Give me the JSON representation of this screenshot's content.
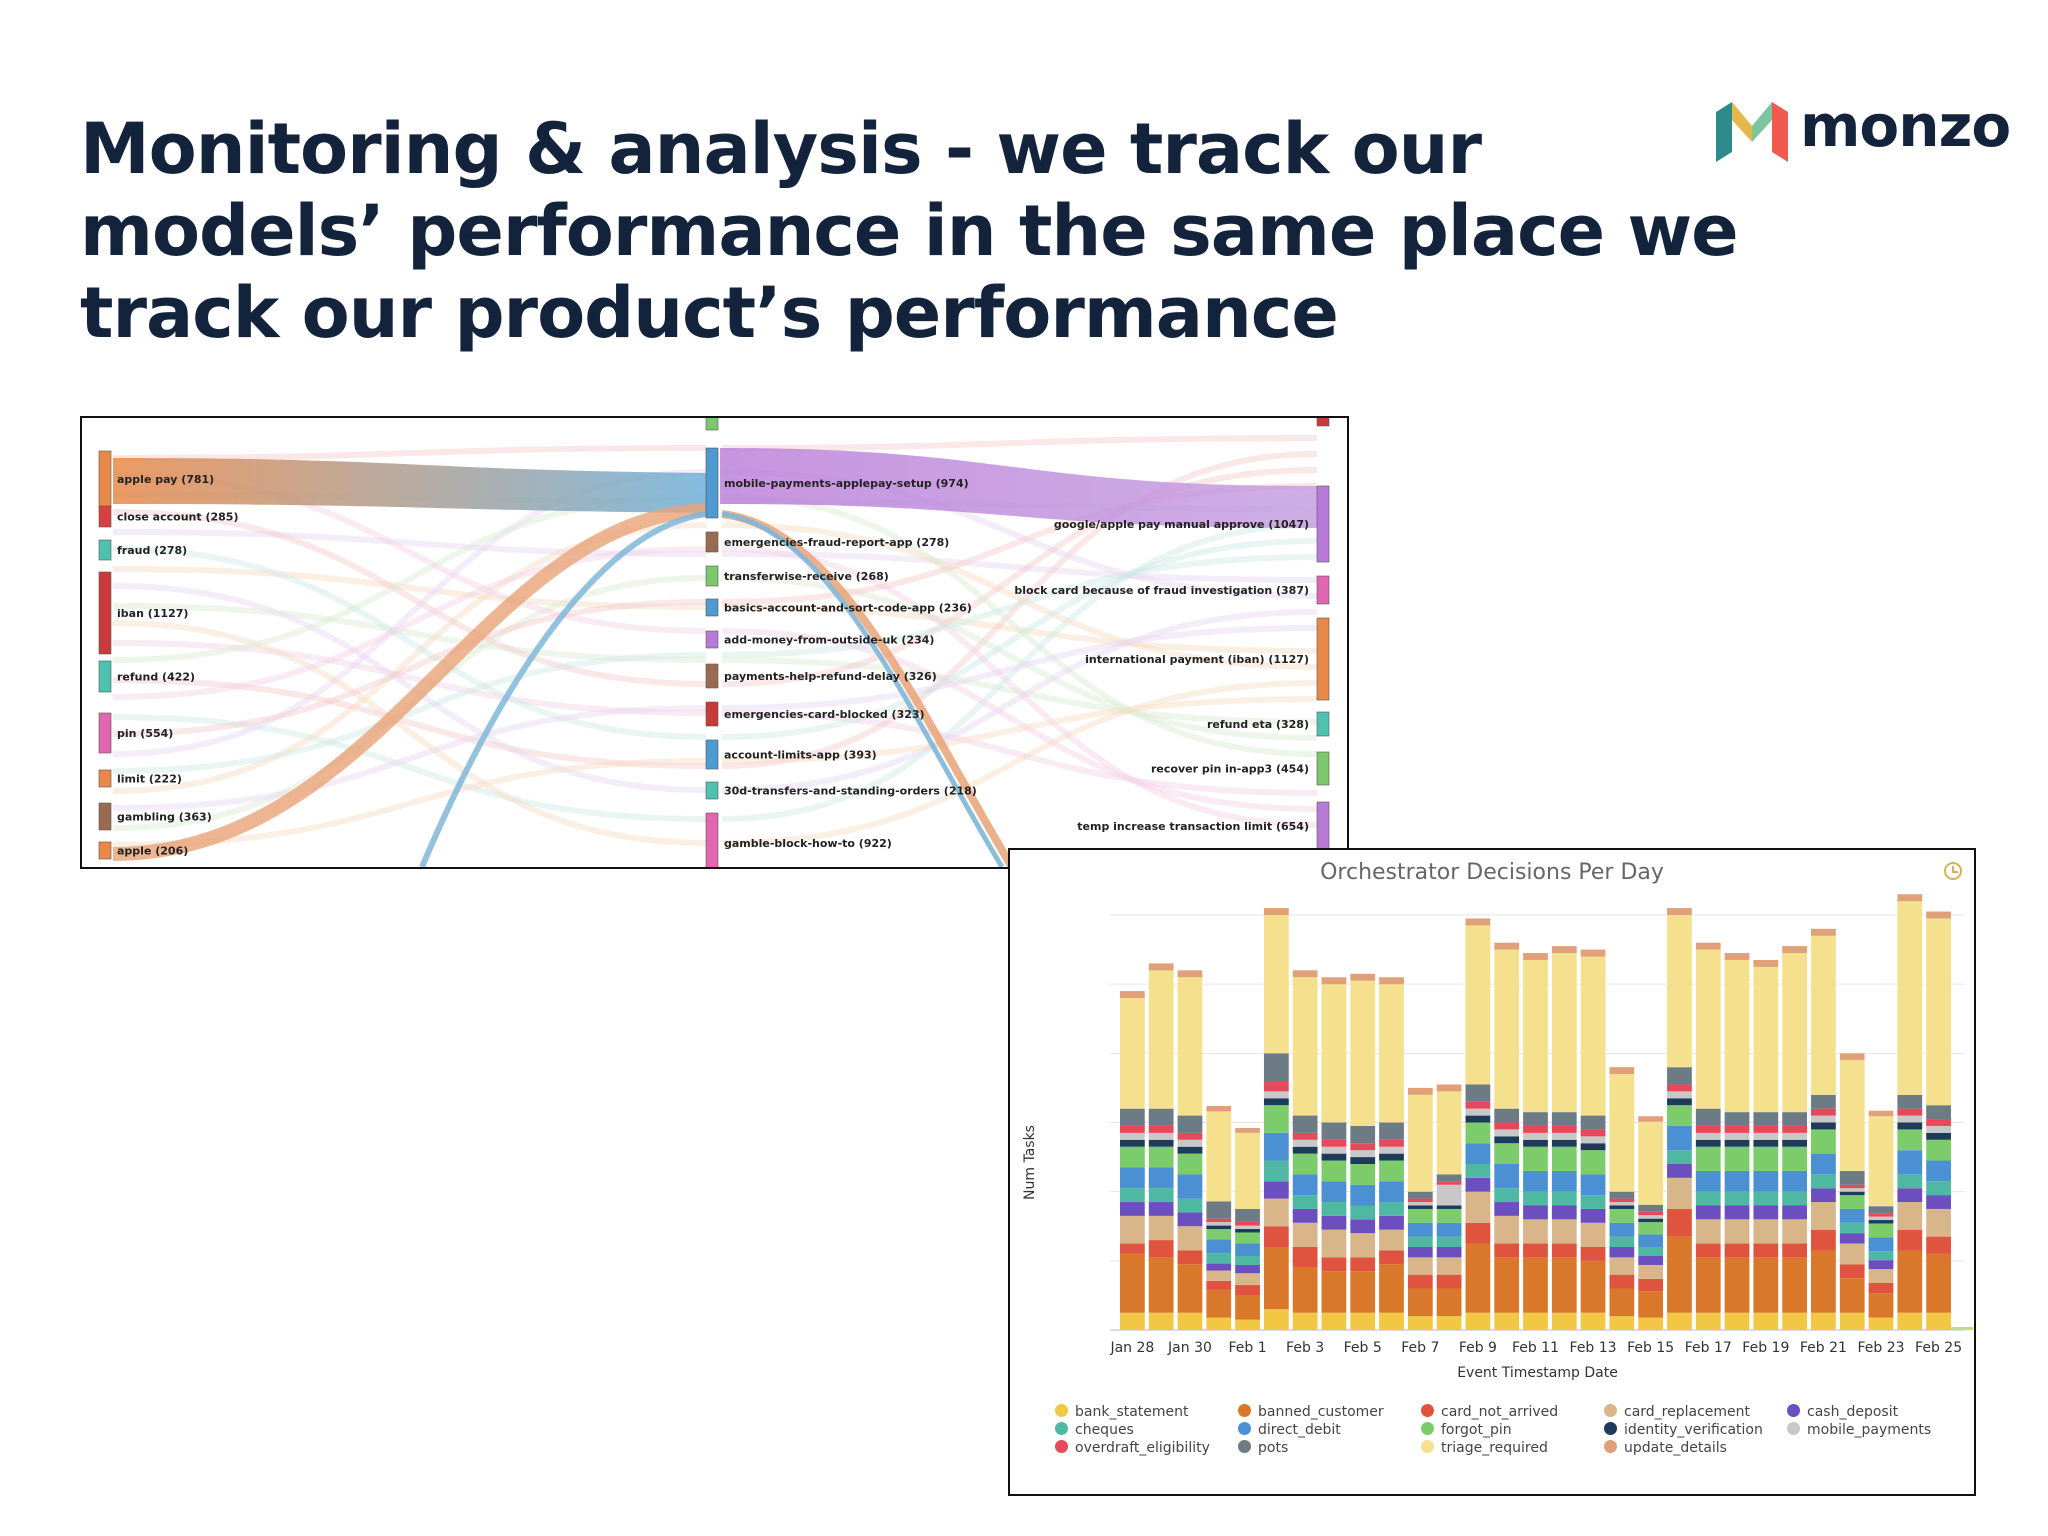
{
  "slide": {
    "title_lines": [
      "Monitoring & analysis - we track our",
      "models’ performance in the same place we",
      "track our product’s performance"
    ],
    "brand": "monzo",
    "colors": {
      "title": "#14233c",
      "logo_coral": "#f15a4e",
      "logo_teal": "#2e8b8b",
      "logo_gold": "#e6b74a",
      "logo_navy": "#14233c"
    }
  },
  "chart_data": [
    {
      "type": "sankey",
      "nodes_left": [
        {
          "label": "apple pay (781)",
          "color": "#e8894a"
        },
        {
          "label": "close account (285)",
          "color": "#d64040"
        },
        {
          "label": "fraud (278)",
          "color": "#4fc1b0"
        },
        {
          "label": "iban (1127)",
          "color": "#c93a3a"
        },
        {
          "label": "refund (422)",
          "color": "#4fc1b0"
        },
        {
          "label": "pin (554)",
          "color": "#e066b0"
        },
        {
          "label": "limit (222)",
          "color": "#e8894a"
        },
        {
          "label": "gambling (363)",
          "color": "#9a6a52"
        },
        {
          "label": "apple (206)",
          "color": "#e8894a"
        }
      ],
      "nodes_middle": [
        {
          "label": "",
          "color": "#7cc86a"
        },
        {
          "label": "mobile-payments-applepay-setup (974)",
          "color": "#4f9ad0"
        },
        {
          "label": "emergencies-fraud-report-app (278)",
          "color": "#9a6a52"
        },
        {
          "label": "transferwise-receive (268)",
          "color": "#7cc86a"
        },
        {
          "label": "basics-account-and-sort-code-app (236)",
          "color": "#4f9ad0"
        },
        {
          "label": "add-money-from-outside-uk (234)",
          "color": "#b87ad8"
        },
        {
          "label": "payments-help-refund-delay (326)",
          "color": "#9a6a52"
        },
        {
          "label": "emergencies-card-blocked (323)",
          "color": "#c93a3a"
        },
        {
          "label": "account-limits-app (393)",
          "color": "#4f9ad0"
        },
        {
          "label": "30d-transfers-and-standing-orders (218)",
          "color": "#4fc1b0"
        },
        {
          "label": "gamble-block-how-to (922)",
          "color": "#e066b0"
        }
      ],
      "nodes_right": [
        {
          "label": "",
          "color": "#c93a3a"
        },
        {
          "label": "google/apple pay manual approve (1047)",
          "color": "#b87ad8"
        },
        {
          "label": "block card because of fraud investigation (387)",
          "color": "#e066b0"
        },
        {
          "label": "international payment (iban) (1127)",
          "color": "#e8894a"
        },
        {
          "label": "refund eta (328)",
          "color": "#4fc1b0"
        },
        {
          "label": "recover pin in-app3 (454)",
          "color": "#7cc86a"
        },
        {
          "label": "temp increase transaction limit (654)",
          "color": "#b87ad8"
        }
      ]
    },
    {
      "type": "bar",
      "stacked": true,
      "title": "Orchestrator Decisions Per Day",
      "xlabel": "Event Timestamp Date",
      "ylabel": "Num Tasks",
      "grid": true,
      "legend_position": "bottom",
      "x_tick_labels": [
        "Jan 28",
        "Jan 30",
        "Feb 1",
        "Feb 3",
        "Feb 5",
        "Feb 7",
        "Feb 9",
        "Feb 11",
        "Feb 13",
        "Feb 15",
        "Feb 17",
        "Feb 19",
        "Feb 21",
        "Feb 23",
        "Feb 25"
      ],
      "ylim": [
        0,
        60
      ],
      "categories": [
        "Jan 28",
        "Jan 29",
        "Jan 30",
        "Jan 31",
        "Feb 1",
        "Feb 2",
        "Feb 3",
        "Feb 4",
        "Feb 5",
        "Feb 6",
        "Feb 7",
        "Feb 8",
        "Feb 9",
        "Feb 10",
        "Feb 11",
        "Feb 12",
        "Feb 13",
        "Feb 14",
        "Feb 15",
        "Feb 16",
        "Feb 17",
        "Feb 18",
        "Feb 19",
        "Feb 20",
        "Feb 21",
        "Feb 22",
        "Feb 23",
        "Feb 24",
        "Feb 25"
      ],
      "series": [
        {
          "name": "bank_statement",
          "color": "#f2c744"
        },
        {
          "name": "banned_customer",
          "color": "#d9782a"
        },
        {
          "name": "card_not_arrived",
          "color": "#e0533e"
        },
        {
          "name": "card_replacement",
          "color": "#d9b68a"
        },
        {
          "name": "cash_deposit",
          "color": "#6b4fbf"
        },
        {
          "name": "cheques",
          "color": "#4fb8a3"
        },
        {
          "name": "direct_debit",
          "color": "#4a90d2"
        },
        {
          "name": "forgot_pin",
          "color": "#7ccc6b"
        },
        {
          "name": "identity_verification",
          "color": "#1d3c5a"
        },
        {
          "name": "mobile_payments",
          "color": "#c8c8c8"
        },
        {
          "name": "overdraft_eligibility",
          "color": "#e8495a"
        },
        {
          "name": "pots",
          "color": "#6d7b85"
        },
        {
          "name": "triage_required",
          "color": "#f5e08e"
        },
        {
          "name": "update_details",
          "color": "#e0a078"
        }
      ],
      "matrix": [
        [
          2.5,
          8.5,
          1.5,
          4,
          2,
          2,
          3,
          3,
          1,
          1,
          1,
          2.5,
          16,
          1
        ],
        [
          2.5,
          8,
          2.5,
          3.5,
          2,
          2,
          3,
          3,
          1,
          1,
          1,
          2.5,
          20,
          1
        ],
        [
          2.5,
          7,
          2,
          3.5,
          2,
          2,
          3.5,
          3,
          1,
          1,
          1,
          2.5,
          20,
          1
        ],
        [
          1.8,
          4,
          1.3,
          1.5,
          1,
          1.5,
          2,
          1.5,
          0.5,
          0.5,
          0.5,
          2.5,
          13,
          0.8
        ],
        [
          1.5,
          3.5,
          1.5,
          1.7,
          1.2,
          1.3,
          1.8,
          1.6,
          0.5,
          0.5,
          0.6,
          1.8,
          11,
          0.7
        ],
        [
          3,
          9,
          3,
          4,
          2.5,
          3,
          4,
          4,
          1,
          1,
          1.5,
          4,
          20,
          1
        ],
        [
          2.5,
          6.5,
          3,
          3.5,
          2,
          2,
          3,
          3,
          1,
          1,
          1,
          2.5,
          20,
          1
        ],
        [
          2.5,
          6,
          2,
          4,
          2,
          2,
          3,
          3,
          1,
          1,
          1,
          2.5,
          20,
          1
        ],
        [
          2.5,
          6,
          2,
          3.5,
          2,
          2,
          3,
          3,
          1,
          1,
          1,
          2.5,
          21,
          1
        ],
        [
          2.5,
          7,
          2,
          3,
          2,
          2,
          3,
          3,
          1,
          1,
          1,
          2.5,
          20,
          1
        ],
        [
          2,
          4,
          2,
          2.5,
          1.5,
          1.5,
          2,
          2,
          0.5,
          0.5,
          0.5,
          1,
          14,
          1
        ],
        [
          2,
          4,
          2,
          2.5,
          1.5,
          1.5,
          2,
          2,
          0.5,
          3,
          0.5,
          1,
          12,
          1
        ],
        [
          2.5,
          10,
          3,
          4.5,
          2,
          2,
          3,
          3,
          1,
          1,
          1,
          2.5,
          23,
          1
        ],
        [
          2.5,
          8,
          2,
          4,
          2,
          2,
          3.5,
          3,
          1,
          1,
          1,
          2,
          23,
          1
        ],
        [
          2.5,
          8,
          2,
          3.5,
          2,
          2,
          3,
          3.5,
          1,
          1,
          1,
          2,
          22,
          1
        ],
        [
          2.5,
          8,
          2,
          3.5,
          2,
          2,
          3,
          3.5,
          1,
          1,
          1,
          2,
          23,
          1
        ],
        [
          2.5,
          7.5,
          2,
          3.5,
          2,
          2,
          3,
          3.5,
          1,
          1,
          1,
          2,
          23,
          1
        ],
        [
          2,
          4,
          2,
          2.5,
          1.5,
          1.5,
          2,
          2,
          0.5,
          0.5,
          0.5,
          1,
          17,
          1
        ],
        [
          1.8,
          3.8,
          1.8,
          2,
          1.3,
          1.3,
          1.8,
          1.8,
          0.5,
          0.5,
          0.5,
          1,
          12,
          0.8
        ],
        [
          2.5,
          11,
          4,
          4.5,
          2,
          2,
          3.5,
          3,
          1,
          1,
          1,
          2.5,
          22,
          1
        ],
        [
          2.5,
          8,
          2,
          3.5,
          2,
          2,
          3,
          3.5,
          1,
          1,
          1,
          2.5,
          23,
          1
        ],
        [
          2.5,
          8,
          2,
          3.5,
          2,
          2,
          3,
          3.5,
          1,
          1,
          1,
          2,
          22,
          1
        ],
        [
          2.5,
          8,
          2,
          3.5,
          2,
          2,
          3,
          3.5,
          1,
          1,
          1,
          2,
          21,
          1
        ],
        [
          2.5,
          8,
          2,
          3.5,
          2,
          2,
          3,
          3.5,
          1,
          1,
          1,
          2,
          23,
          1
        ],
        [
          2.5,
          9,
          3,
          4,
          2,
          2,
          3,
          3.5,
          1,
          1,
          1,
          2,
          23,
          1
        ],
        [
          2.5,
          5,
          2,
          3,
          1.5,
          1.5,
          2,
          2,
          0.5,
          0.5,
          0.5,
          2,
          16,
          1
        ],
        [
          1.8,
          3.5,
          1.5,
          2,
          1.3,
          1.3,
          2,
          2,
          0.5,
          0.5,
          0.5,
          1,
          13,
          0.8
        ],
        [
          2.5,
          9,
          3,
          4,
          2,
          2,
          3.5,
          3,
          1,
          1,
          1,
          2,
          28,
          1
        ],
        [
          2.5,
          8.5,
          2.5,
          4,
          2,
          2,
          3,
          3,
          1,
          1,
          1,
          2,
          27,
          1
        ]
      ],
      "extra_last_bar": {
        "category": "Feb 25",
        "note": "small partial bar"
      }
    }
  ]
}
